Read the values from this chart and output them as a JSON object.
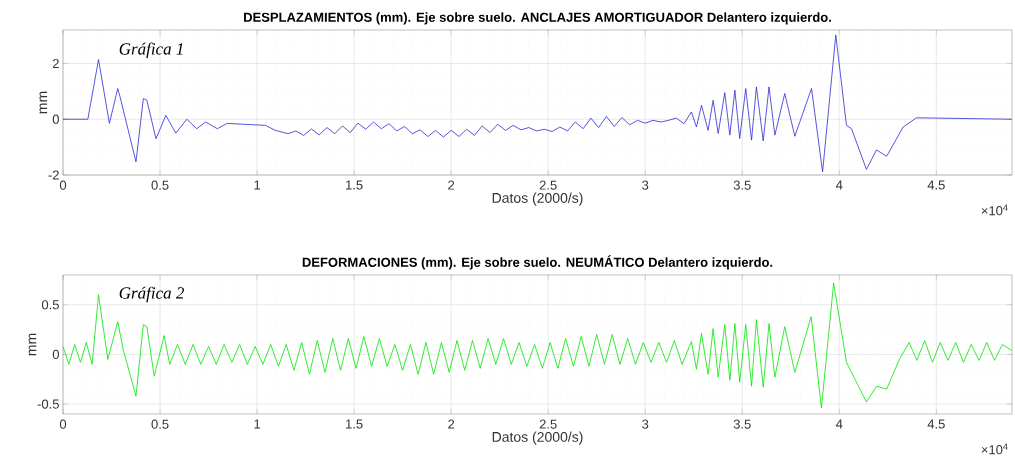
{
  "chart_data": [
    {
      "type": "line",
      "title": "DESPLAZAMIENTOS  (mm).  Eje sobre suelo. ANCLAJES AMORTIGUADOR Delantero izquierdo.",
      "xlabel": "Datos (2000/s)",
      "ylabel": "mm",
      "annotations": [
        "Gráfica 1",
        "×10$^{4}$"
      ],
      "color": "#2b2bd6",
      "grid": true,
      "xlim": [
        0,
        4.89
      ],
      "ylim": [
        -2,
        3.2
      ],
      "xticks": [
        0,
        0.5,
        1,
        1.5,
        2,
        2.5,
        3,
        3.5,
        4,
        4.5
      ],
      "yticks": [
        -2,
        0,
        2
      ],
      "x": [
        0,
        0.128,
        0.183,
        0.239,
        0.282,
        0.294,
        0.376,
        0.414,
        0.432,
        0.479,
        0.53,
        0.581,
        0.638,
        0.689,
        0.735,
        0.795,
        0.846,
        1.043,
        1.094,
        1.16,
        1.2,
        1.24,
        1.28,
        1.32,
        1.36,
        1.4,
        1.44,
        1.48,
        1.52,
        1.56,
        1.6,
        1.64,
        1.68,
        1.72,
        1.76,
        1.8,
        1.84,
        1.88,
        1.92,
        1.96,
        2,
        2.04,
        2.08,
        2.12,
        2.16,
        2.2,
        2.24,
        2.28,
        2.32,
        2.36,
        2.4,
        2.44,
        2.48,
        2.52,
        2.56,
        2.6,
        2.64,
        2.68,
        2.72,
        2.76,
        2.8,
        2.84,
        2.88,
        2.92,
        2.96,
        3,
        3.04,
        3.08,
        3.12,
        3.16,
        3.2,
        3.238,
        3.264,
        3.29,
        3.324,
        3.35,
        3.376,
        3.41,
        3.436,
        3.462,
        3.487,
        3.518,
        3.548,
        3.573,
        3.608,
        3.638,
        3.668,
        3.719,
        3.771,
        3.857,
        3.914,
        3.982,
        4.037,
        4.063,
        4.14,
        4.192,
        4.244,
        4.329,
        4.398,
        4.888
      ],
      "values": [
        0,
        0,
        2.14,
        -0.15,
        1.1,
        0.8,
        -1.53,
        0.74,
        0.68,
        -0.7,
        0.14,
        -0.5,
        0,
        -0.34,
        -0.1,
        -0.34,
        -0.15,
        -0.22,
        -0.4,
        -0.52,
        -0.42,
        -0.58,
        -0.35,
        -0.56,
        -0.3,
        -0.52,
        -0.24,
        -0.48,
        -0.14,
        -0.36,
        -0.1,
        -0.34,
        -0.16,
        -0.42,
        -0.26,
        -0.52,
        -0.38,
        -0.62,
        -0.4,
        -0.64,
        -0.4,
        -0.62,
        -0.36,
        -0.58,
        -0.24,
        -0.48,
        -0.18,
        -0.4,
        -0.22,
        -0.38,
        -0.3,
        -0.42,
        -0.36,
        -0.44,
        -0.28,
        -0.42,
        -0.1,
        -0.34,
        0.04,
        -0.3,
        0.1,
        -0.26,
        0.06,
        -0.2,
        -0.04,
        -0.14,
        -0.04,
        -0.1,
        -0.04,
        0.04,
        -0.16,
        0.26,
        -0.28,
        0.5,
        -0.4,
        0.68,
        -0.51,
        0.95,
        -0.57,
        1.04,
        -0.69,
        1.1,
        -0.75,
        1.16,
        -0.78,
        1.16,
        -0.57,
        0.92,
        -0.61,
        1.1,
        -1.89,
        3.02,
        -0.22,
        -0.34,
        -1.8,
        -1.1,
        -1.33,
        -0.28,
        0.05,
        0
      ]
    },
    {
      "type": "line",
      "title": "DEFORMACIONES  (mm).  Eje sobre suelo. NEUMÁTICO Delantero izquierdo.",
      "xlabel": "Datos (2000/s)",
      "ylabel": "mm",
      "annotations": [
        "Gráfica 2",
        "×10$^{4}$"
      ],
      "color": "#00e600",
      "grid": true,
      "xlim": [
        0,
        4.89
      ],
      "ylim": [
        -0.6,
        0.8
      ],
      "xticks": [
        0,
        0.5,
        1,
        1.5,
        2,
        2.5,
        3,
        3.5,
        4,
        4.5
      ],
      "yticks": [
        -0.5,
        0,
        0.5
      ],
      "x": [
        0,
        0.03,
        0.06,
        0.09,
        0.12,
        0.15,
        0.183,
        0.231,
        0.282,
        0.31,
        0.376,
        0.414,
        0.432,
        0.47,
        0.521,
        0.55,
        0.59,
        0.63,
        0.67,
        0.71,
        0.75,
        0.79,
        0.83,
        0.87,
        0.91,
        0.95,
        0.99,
        1.03,
        1.07,
        1.11,
        1.15,
        1.19,
        1.23,
        1.27,
        1.31,
        1.35,
        1.39,
        1.43,
        1.47,
        1.51,
        1.55,
        1.59,
        1.63,
        1.67,
        1.71,
        1.75,
        1.79,
        1.83,
        1.87,
        1.91,
        1.95,
        1.99,
        2.03,
        2.07,
        2.11,
        2.15,
        2.19,
        2.23,
        2.27,
        2.31,
        2.35,
        2.39,
        2.43,
        2.47,
        2.51,
        2.55,
        2.59,
        2.63,
        2.67,
        2.71,
        2.75,
        2.79,
        2.83,
        2.87,
        2.91,
        2.95,
        2.99,
        3.03,
        3.07,
        3.11,
        3.15,
        3.19,
        3.238,
        3.264,
        3.29,
        3.324,
        3.35,
        3.376,
        3.41,
        3.436,
        3.462,
        3.487,
        3.518,
        3.548,
        3.573,
        3.608,
        3.638,
        3.668,
        3.719,
        3.771,
        3.855,
        3.908,
        3.971,
        4.037,
        4.14,
        4.192,
        4.244,
        4.312,
        4.36,
        4.4,
        4.44,
        4.48,
        4.52,
        4.56,
        4.6,
        4.64,
        4.68,
        4.72,
        4.76,
        4.8,
        4.84,
        4.888
      ],
      "values": [
        0.08,
        -0.1,
        0.1,
        -0.08,
        0.12,
        -0.1,
        0.6,
        -0.05,
        0.33,
        0.05,
        -0.42,
        0.3,
        0.28,
        -0.22,
        0.19,
        -0.1,
        0.1,
        -0.1,
        0.1,
        -0.1,
        0.08,
        -0.1,
        0.1,
        -0.08,
        0.1,
        -0.1,
        0.08,
        -0.1,
        0.1,
        -0.12,
        0.1,
        -0.16,
        0.12,
        -0.2,
        0.14,
        -0.18,
        0.16,
        -0.16,
        0.16,
        -0.14,
        0.18,
        -0.12,
        0.16,
        -0.12,
        0.1,
        -0.16,
        0.1,
        -0.2,
        0.12,
        -0.2,
        0.12,
        -0.18,
        0.14,
        -0.16,
        0.14,
        -0.14,
        0.16,
        -0.1,
        0.16,
        -0.1,
        0.12,
        -0.12,
        0.1,
        -0.14,
        0.12,
        -0.14,
        0.16,
        -0.12,
        0.18,
        -0.12,
        0.2,
        -0.1,
        0.2,
        -0.1,
        0.16,
        -0.1,
        0.12,
        -0.08,
        0.12,
        -0.08,
        0.14,
        -0.1,
        0.13,
        -0.15,
        0.21,
        -0.2,
        0.26,
        -0.23,
        0.3,
        -0.26,
        0.31,
        -0.28,
        0.3,
        -0.32,
        0.35,
        -0.33,
        0.31,
        -0.23,
        0.28,
        -0.18,
        0.38,
        -0.54,
        0.72,
        -0.08,
        -0.48,
        -0.32,
        -0.35,
        -0.04,
        0.12,
        -0.06,
        0.14,
        -0.08,
        0.12,
        -0.06,
        0.12,
        -0.08,
        0.1,
        -0.06,
        0.12,
        -0.06,
        0.1,
        0.04
      ]
    }
  ]
}
